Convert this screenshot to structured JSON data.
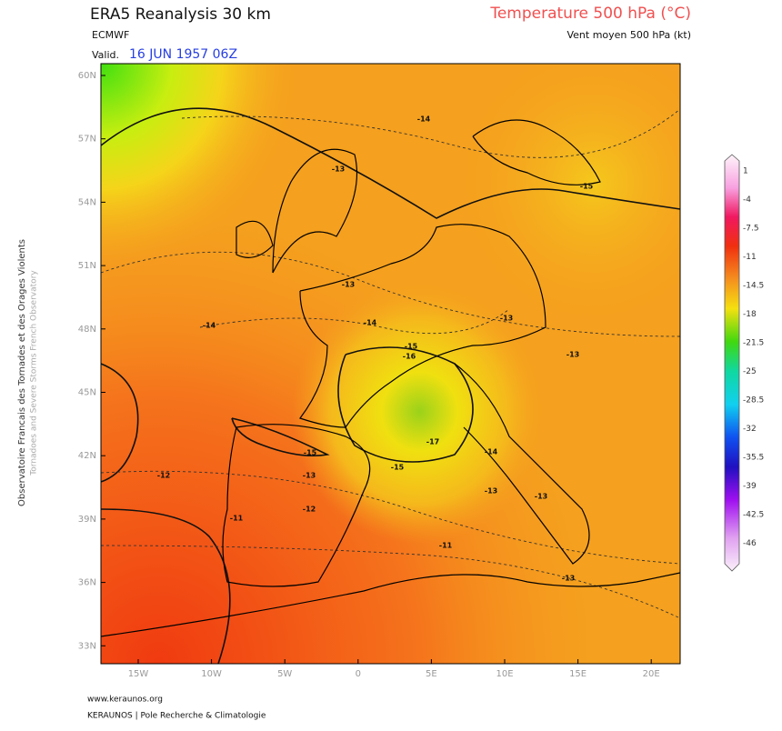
{
  "header": {
    "title": "ERA5 Reanalysis 30 km",
    "source": "ECMWF",
    "valid_label": "Valid.",
    "valid_date": "16 JUN 1957 06Z",
    "parameter": "Temperature 500 hPa (°C)",
    "wind": "Vent moyen 500 hPa (kt)"
  },
  "side_text": {
    "french": "Observatoire Francais des Tornades et des Orages Violents",
    "english": "Tornadoes and Severe Storms French Observatory"
  },
  "lat_labels": [
    "60N",
    "57N",
    "54N",
    "51N",
    "48N",
    "45N",
    "42N",
    "39N",
    "36N",
    "33N"
  ],
  "lon_labels": [
    "15W",
    "10W",
    "5W",
    "0",
    "5E",
    "10E",
    "15E",
    "20E"
  ],
  "colorbar": [
    1,
    -4,
    -7.5,
    -11,
    -14.5,
    -18,
    -21.5,
    -25,
    -28.5,
    -32,
    -35.5,
    -39,
    -42.5,
    -46
  ],
  "contour_labels": [
    "-14",
    "-13",
    "-15",
    "-13",
    "-14",
    "-14",
    "-13",
    "-15",
    "-16",
    "-15",
    "-17",
    "-15",
    "-14",
    "-13",
    "-13",
    "-12",
    "-12",
    "-11",
    "-11",
    "-13",
    "-13",
    "-13"
  ],
  "footer": {
    "site": "www.keraunos.org",
    "org": "KERAUNOS | Pole Recherche & Climatologie"
  }
}
